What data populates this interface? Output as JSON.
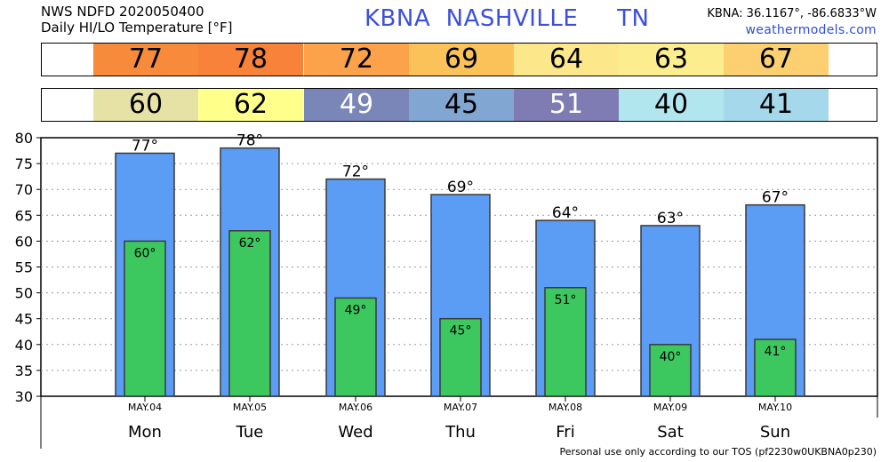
{
  "header": {
    "line1": "NWS NDFD 2020050400",
    "line2": "Daily HI/LO Temperature [°F]",
    "station_title": "KBNA  NASHVILLE     TN",
    "coords": "KBNA: 36.1167°, -86.6833°W",
    "site": "weathermodels.com"
  },
  "strips": {
    "hi_values": [
      "77",
      "78",
      "72",
      "69",
      "64",
      "63",
      "67"
    ],
    "hi_colors": [
      "#f88a3c",
      "#f8823a",
      "#fba24a",
      "#fcc25a",
      "#fce88a",
      "#fcee8e",
      "#fcd070"
    ],
    "lo_values": [
      "60",
      "62",
      "49",
      "45",
      "51",
      "40",
      "41"
    ],
    "lo_colors": [
      "#e6e2a6",
      "#ffff8c",
      "#7a86b8",
      "#82a6d2",
      "#7e7cb2",
      "#b2e6ee",
      "#a6d8ec"
    ],
    "lo_text_colors": [
      "#000000",
      "#000000",
      "#ffffff",
      "#000000",
      "#ffffff",
      "#000000",
      "#000000"
    ]
  },
  "chart_data": {
    "type": "bar",
    "categories": [
      "Mon",
      "Tue",
      "Wed",
      "Thu",
      "Fri",
      "Sat",
      "Sun"
    ],
    "dates": [
      "MAY.04",
      "MAY.05",
      "MAY.06",
      "MAY.07",
      "MAY.08",
      "MAY.09",
      "MAY.10"
    ],
    "series": [
      {
        "values": [
          77,
          78,
          72,
          69,
          64,
          63,
          67
        ],
        "color": "#5b9cf5"
      },
      {
        "values": [
          60,
          62,
          49,
          45,
          51,
          40,
          41
        ],
        "color": "#3cc85e"
      }
    ],
    "value_labels_hi": [
      "77°",
      "78°",
      "72°",
      "69°",
      "64°",
      "63°",
      "67°"
    ],
    "value_labels_lo": [
      "60°",
      "62°",
      "49°",
      "45°",
      "51°",
      "40°",
      "41°"
    ],
    "ylim": [
      30,
      80
    ],
    "yticks": [
      "30",
      "35",
      "40",
      "45",
      "50",
      "55",
      "60",
      "65",
      "70",
      "75",
      "80"
    ],
    "grid": true,
    "xlabel": "",
    "ylabel": ""
  },
  "footer": "Personal use only according to our TOS (pf2230w0UKBNA0p230)"
}
